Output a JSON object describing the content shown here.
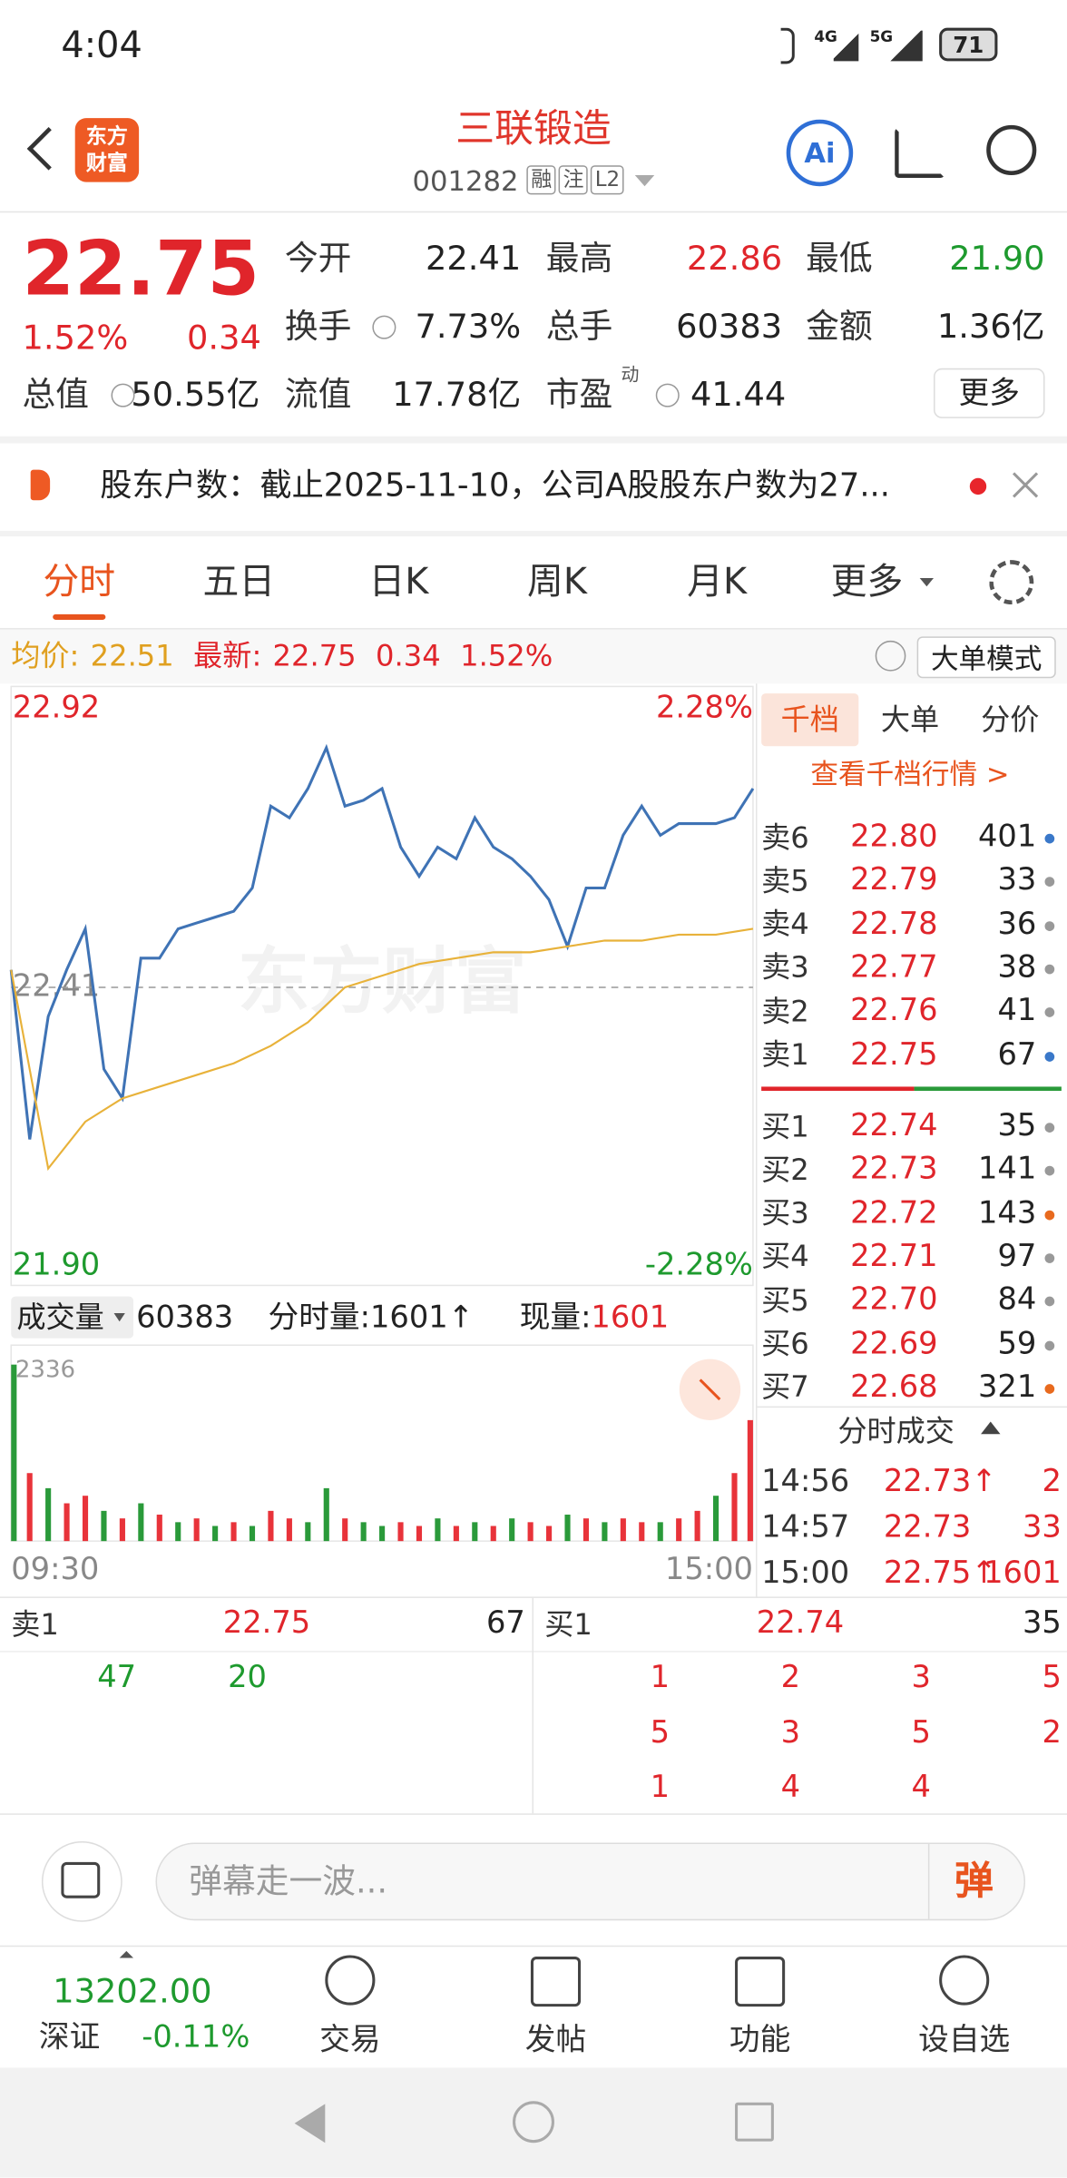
{
  "status_bar": {
    "time": "4:04",
    "network": [
      "4G",
      "5G"
    ],
    "battery": "71"
  },
  "header": {
    "logo": [
      "东方",
      "财富"
    ],
    "name": "三联锻造",
    "code": "001282",
    "tags": [
      "融",
      "注",
      "L2"
    ],
    "ai": "Ai"
  },
  "quote": {
    "price": "22.75",
    "change_pct": "1.52%",
    "change": "0.34",
    "fields": [
      {
        "label": "今开",
        "value": "22.41"
      },
      {
        "label": "最高",
        "value": "22.86"
      },
      {
        "label": "最低",
        "value": "21.90"
      },
      {
        "label": "换手",
        "value": "7.73%"
      },
      {
        "label": "总手",
        "value": "60383"
      },
      {
        "label": "金额",
        "value": "1.36亿"
      },
      {
        "label": "总值",
        "value": "50.55亿"
      },
      {
        "label": "流值",
        "value": "17.78亿"
      },
      {
        "label": "市盈",
        "sup": "动",
        "value": "41.44"
      }
    ],
    "more": "更多"
  },
  "notice": {
    "text": "股东户数：截止2025-11-10，公司A股股东户数为27..."
  },
  "tabs": [
    "分时",
    "五日",
    "日K",
    "周K",
    "月K",
    "更多"
  ],
  "info_bar": {
    "avg_label": "均价:",
    "avg": "22.51",
    "last_label": "最新:",
    "last": "22.75",
    "change": "0.34",
    "change_pct": "1.52%",
    "mode": "大单模式"
  },
  "chart_watermark": "东方财富",
  "chart_data": [
    {
      "type": "line",
      "x": [
        0,
        6,
        12,
        18,
        24,
        30,
        36,
        42,
        48,
        54,
        60,
        66,
        72,
        78,
        84,
        90,
        96,
        102,
        108,
        114,
        120,
        126,
        132,
        138,
        144,
        150,
        156,
        162,
        168,
        174,
        180,
        186,
        192,
        198,
        204,
        210,
        216,
        222,
        228,
        234,
        240
      ],
      "xlim": [
        0,
        240
      ],
      "ylim": [
        21.9,
        22.92
      ],
      "yticks": [
        22.92,
        22.41,
        {
          "value": 21.9,
          "label": "21.90"
        }
      ],
      "y2lim": [
        -2.28,
        2.28
      ],
      "y2ticks": [
        {
          "value": 2.28,
          "label": "2.28%"
        },
        {
          "value": -2.28,
          "label": "-2.28%"
        }
      ],
      "series": [
        {
          "color": "#3f73b5",
          "values": [
            22.44,
            22.15,
            22.36,
            22.44,
            22.51,
            22.27,
            22.22,
            22.46,
            22.46,
            22.51,
            22.52,
            22.53,
            22.54,
            22.58,
            22.72,
            22.7,
            22.75,
            22.82,
            22.72,
            22.73,
            22.75,
            22.65,
            22.6,
            22.65,
            22.63,
            22.7,
            22.65,
            22.63,
            22.6,
            22.56,
            22.48,
            22.58,
            22.58,
            22.67,
            22.72,
            22.67,
            22.69,
            22.69,
            22.69,
            22.7,
            22.75
          ]
        },
        {
          "color": "#e8b23a",
          "x": [
            0,
            12,
            24,
            36,
            48,
            60,
            72,
            84,
            96,
            108,
            120,
            132,
            144,
            156,
            168,
            180,
            192,
            204,
            216,
            228,
            240
          ],
          "values": [
            22.44,
            22.1,
            22.18,
            22.22,
            22.24,
            22.26,
            22.28,
            22.31,
            22.35,
            22.41,
            22.43,
            22.45,
            22.46,
            22.47,
            22.47,
            22.48,
            22.49,
            22.49,
            22.5,
            22.5,
            22.51
          ]
        }
      ]
    },
    {
      "type": "bar",
      "x": [
        0,
        6,
        12,
        18,
        24,
        30,
        36,
        42,
        48,
        54,
        60,
        66,
        72,
        78,
        84,
        90,
        96,
        102,
        108,
        114,
        120,
        126,
        132,
        138,
        144,
        150,
        156,
        162,
        168,
        174,
        180,
        186,
        192,
        198,
        204,
        210,
        216,
        222,
        228,
        234,
        240
      ],
      "xlim": [
        0,
        240
      ],
      "xticks": [
        {
          "value": 0,
          "label": "09:30"
        },
        {
          "value": 240,
          "label": "15:00"
        }
      ],
      "ylim": [
        0,
        2336
      ],
      "yticks": [
        2336
      ],
      "values": [
        2336,
        900,
        700,
        500,
        600,
        400,
        300,
        500,
        350,
        250,
        300,
        200,
        250,
        200,
        400,
        300,
        250,
        700,
        300,
        250,
        200,
        250,
        200,
        300,
        200,
        250,
        200,
        300,
        250,
        200,
        350,
        300,
        250,
        300,
        250,
        250,
        300,
        400,
        600,
        900,
        1601
      ],
      "colors": [
        "#2a9a3a",
        "#e8333a",
        "#2a9a3a",
        "#e8333a",
        "#e8333a",
        "#2a9a3a",
        "#e8333a",
        "#2a9a3a",
        "#e8333a",
        "#2a9a3a",
        "#e8333a",
        "#2a9a3a",
        "#e8333a",
        "#2a9a3a",
        "#e8333a",
        "#e8333a",
        "#2a9a3a",
        "#2a9a3a",
        "#e8333a",
        "#2a9a3a",
        "#2a9a3a",
        "#e8333a",
        "#e8333a",
        "#2a9a3a",
        "#e8333a",
        "#2a9a3a",
        "#e8333a",
        "#2a9a3a",
        "#e8333a",
        "#e8333a",
        "#2a9a3a",
        "#e8333a",
        "#2a9a3a",
        "#e8333a",
        "#e8333a",
        "#2a9a3a",
        "#e8333a",
        "#e8333a",
        "#2a9a3a",
        "#e8333a",
        "#e8333a"
      ]
    }
  ],
  "volume_bar": {
    "selector": "成交量",
    "total": "60383",
    "tick_label": "分时量:",
    "tick": "1601",
    "arrow": "↑",
    "current_label": "现量:",
    "current": "1601"
  },
  "order_book": {
    "tabs": [
      "千档",
      "大单",
      "分价"
    ],
    "link": "查看千档行情 >",
    "asks": [
      {
        "label": "卖6",
        "price": "22.80",
        "volume": "401",
        "dot": "#3a78c9"
      },
      {
        "label": "卖5",
        "price": "22.79",
        "volume": "33",
        "dot": "#999999"
      },
      {
        "label": "卖4",
        "price": "22.78",
        "volume": "36",
        "dot": "#999999"
      },
      {
        "label": "卖3",
        "price": "22.77",
        "volume": "38",
        "dot": "#999999"
      },
      {
        "label": "卖2",
        "price": "22.76",
        "volume": "41",
        "dot": "#999999"
      },
      {
        "label": "卖1",
        "price": "22.75",
        "volume": "67",
        "dot": "#3a78c9"
      }
    ],
    "bids": [
      {
        "label": "买1",
        "price": "22.74",
        "volume": "35",
        "dot": "#999999"
      },
      {
        "label": "买2",
        "price": "22.73",
        "volume": "141",
        "dot": "#999999"
      },
      {
        "label": "买3",
        "price": "22.72",
        "volume": "143",
        "dot": "#e86a1e"
      },
      {
        "label": "买4",
        "price": "22.71",
        "volume": "97",
        "dot": "#999999"
      },
      {
        "label": "买5",
        "price": "22.70",
        "volume": "84",
        "dot": "#999999"
      },
      {
        "label": "买6",
        "price": "22.69",
        "volume": "59",
        "dot": "#999999"
      },
      {
        "label": "买7",
        "price": "22.68",
        "volume": "321",
        "dot": "#e86a1e"
      }
    ]
  },
  "trades": {
    "title": "分时成交",
    "rows": [
      {
        "time": "14:56",
        "price": "22.73",
        "arrow": "↑",
        "volume": "2"
      },
      {
        "time": "14:57",
        "price": "22.73",
        "volume": "33"
      },
      {
        "time": "15:00",
        "price": "22.75",
        "arrow": "↑",
        "volume": "1601"
      }
    ]
  },
  "level1": {
    "ask": {
      "label": "卖1",
      "price": "22.75",
      "volume": "67",
      "orders": [
        "47",
        "20"
      ]
    },
    "bid": {
      "label": "买1",
      "price": "22.74",
      "volume": "35",
      "orders": [
        [
          "1",
          "2",
          "3",
          "5"
        ],
        [
          "5",
          "3",
          "5",
          "2"
        ],
        [
          "1",
          "4",
          "4"
        ]
      ]
    }
  },
  "comment": {
    "placeholder": "弹幕走一波...",
    "button": "弹"
  },
  "bottom_nav": {
    "index_value": "13202.00",
    "index_name": "深证",
    "index_change": "-0.11%",
    "items": [
      "交易",
      "发帖",
      "功能",
      "设自选"
    ]
  }
}
